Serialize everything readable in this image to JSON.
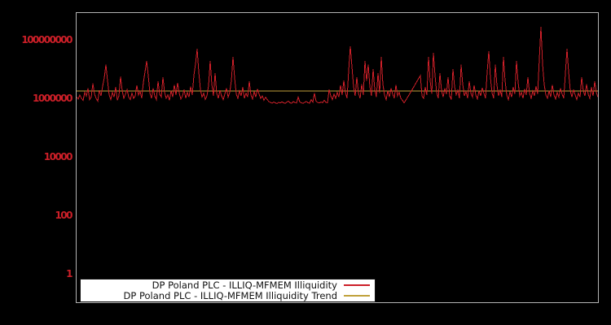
{
  "colors": {
    "background": "#000000",
    "plot_border": "#b4b4b4",
    "axis_label": "#cc1f28",
    "series_illiquidity": "#cc1f28",
    "series_trend": "#bfa13a",
    "legend_background": "#ffffff",
    "legend_text": "#111111"
  },
  "legend": {
    "entries": [
      {
        "label": "DP Poland PLC - ILLIQ-MFMEM Illiquidity",
        "color": "#cc1f28"
      },
      {
        "label": "DP Poland PLC - ILLIQ-MFMEM Illiquidity Trend",
        "color": "#bfa13a"
      }
    ]
  },
  "chart_data": {
    "type": "line",
    "title": "",
    "xlabel": "",
    "ylabel": "",
    "grid": false,
    "legend_position": "bottom-left-inside",
    "y_axis": {
      "scale": "log",
      "ticks": [
        1,
        100,
        10000,
        1000000,
        100000000
      ],
      "tick_labels": [
        "1",
        "100",
        "10000",
        "1000000",
        "100000000"
      ],
      "range_approx": [
        0.1,
        1000000000
      ]
    },
    "x_axis": {
      "tick_labels_visible": false
    },
    "series": [
      {
        "name": "DP Poland PLC - ILLIQ-MFMEM Illiquidity",
        "color": "#cc1f28",
        "values": [
          1100000.0,
          950000.0,
          1300000.0,
          1000000.0,
          850000.0,
          1600000.0,
          1200000.0,
          2200000.0,
          900000.0,
          1100000.0,
          3200000.0,
          1400000.0,
          1000000.0,
          800000.0,
          1900000.0,
          1200000.0,
          2600000.0,
          5000000.0,
          14000000.0,
          4000000.0,
          1300000.0,
          900000.0,
          1600000.0,
          1100000.0,
          2400000.0,
          850000.0,
          1200000.0,
          5500000.0,
          1800000.0,
          1000000.0,
          1400000.0,
          2000000.0,
          1100000.0,
          900000.0,
          1500000.0,
          1000000.0,
          1200000.0,
          2800000.0,
          1300000.0,
          1700000.0,
          1000000.0,
          3500000.0,
          8000000.0,
          19000000.0,
          6000000.0,
          1500000.0,
          1000000.0,
          2200000.0,
          1200000.0,
          900000.0,
          3800000.0,
          1400000.0,
          1100000.0,
          5300000.0,
          1600000.0,
          1000000.0,
          1300000.0,
          850000.0,
          1800000.0,
          1100000.0,
          2900000.0,
          1300000.0,
          3400000.0,
          1500000.0,
          950000.0,
          1200000.0,
          2000000.0,
          1000000.0,
          1600000.0,
          1100000.0,
          2500000.0,
          1300000.0,
          6000000.0,
          15000000.0,
          49000000.0,
          8000000.0,
          2000000.0,
          1100000.0,
          1500000.0,
          900000.0,
          1200000.0,
          2700000.0,
          19000000.0,
          3000000.0,
          1200000.0,
          7200000.0,
          1500000.0,
          1000000.0,
          1900000.0,
          1200000.0,
          900000.0,
          1400000.0,
          2200000.0,
          1100000.0,
          1600000.0,
          4000000.0,
          26000000.0,
          5000000.0,
          1400000.0,
          1000000.0,
          1800000.0,
          1200000.0,
          2400000.0,
          1000000.0,
          1500000.0,
          1100000.0,
          3800000.0,
          1300000.0,
          950000.0,
          1700000.0,
          1100000.0,
          2100000.0,
          1400000.0,
          1000000.0,
          1200000.0,
          850000.0,
          1100000.0,
          900000.0,
          780000.0,
          720000.0,
          680000.0,
          750000.0,
          700000.0,
          660000.0,
          730000.0,
          690000.0,
          760000.0,
          710000.0,
          670000.0,
          740000.0,
          800000.0,
          700000.0,
          680000.0,
          770000.0,
          720000.0,
          690000.0,
          1100000.0,
          750000.0,
          700000.0,
          670000.0,
          730000.0,
          780000.0,
          710000.0,
          680000.0,
          900000.0,
          740000.0,
          1500000.0,
          800000.0,
          720000.0,
          690000.0,
          750000.0,
          710000.0,
          850000.0,
          730000.0,
          700000.0,
          2000000.0,
          1200000.0,
          900000.0,
          1400000.0,
          1000000.0,
          1600000.0,
          1100000.0,
          2800000.0,
          1300000.0,
          4000000.0,
          1600000.0,
          1000000.0,
          9000000.0,
          60000000.0,
          12000000.0,
          2500000.0,
          1200000.0,
          5300000.0,
          1500000.0,
          1000000.0,
          3000000.0,
          1300000.0,
          19000000.0,
          4000000.0,
          14000000.0,
          2500000.0,
          1200000.0,
          10000000.0,
          2000000.0,
          1100000.0,
          7200000.0,
          1500000.0,
          26000000.0,
          3000000.0,
          1300000.0,
          900000.0,
          1800000.0,
          1100000.0,
          2200000.0,
          1400000.0,
          1000000.0,
          2900000.0,
          1200000.0,
          1600000.0,
          1000000.0,
          850000.0,
          700000.0,
          850000.0,
          1050000.0,
          1300000.0,
          1600000.0,
          2000000.0,
          2500000.0,
          3100000.0,
          3900000.0,
          4800000.0,
          6000000.0,
          1200000.0,
          1000000.0,
          2400000.0,
          1300000.0,
          26000000.0,
          4000000.0,
          1400000.0,
          36000000.0,
          6000000.0,
          1600000.0,
          1000000.0,
          7200000.0,
          1800000.0,
          1100000.0,
          2200000.0,
          1400000.0,
          5300000.0,
          1200000.0,
          900000.0,
          10000000.0,
          2500000.0,
          1300000.0,
          1900000.0,
          1000000.0,
          14000000.0,
          3000000.0,
          1200000.0,
          1700000.0,
          1000000.0,
          3800000.0,
          1500000.0,
          1100000.0,
          2800000.0,
          1300000.0,
          950000.0,
          1800000.0,
          1200000.0,
          2300000.0,
          1500000.0,
          1000000.0,
          8000000.0,
          41000000.0,
          5000000.0,
          1500000.0,
          1000000.0,
          14000000.0,
          2800000.0,
          1200000.0,
          1900000.0,
          1100000.0,
          26000000.0,
          4000000.0,
          1300000.0,
          900000.0,
          1700000.0,
          1100000.0,
          2400000.0,
          1400000.0,
          19000000.0,
          3500000.0,
          1200000.0,
          1600000.0,
          1000000.0,
          2100000.0,
          1300000.0,
          5300000.0,
          1500000.0,
          1000000.0,
          1800000.0,
          1200000.0,
          2600000.0,
          1400000.0,
          22000000.0,
          280000000.0,
          15000000.0,
          3000000.0,
          1300000.0,
          1000000.0,
          1800000.0,
          1100000.0,
          2900000.0,
          1300000.0,
          950000.0,
          1600000.0,
          1100000.0,
          2200000.0,
          1400000.0,
          1000000.0,
          7000000.0,
          49000000.0,
          8000000.0,
          1800000.0,
          1100000.0,
          2000000.0,
          1300000.0,
          900000.0,
          1500000.0,
          1100000.0,
          5300000.0,
          1800000.0,
          1200000.0,
          3000000.0,
          1400000.0,
          1000000.0,
          2400000.0,
          1200000.0,
          3800000.0,
          1600000.0,
          1100000.0
        ]
      },
      {
        "name": "DP Poland PLC - ILLIQ-MFMEM Illiquidity Trend",
        "color": "#bfa13a",
        "value": 1800000
      }
    ]
  }
}
